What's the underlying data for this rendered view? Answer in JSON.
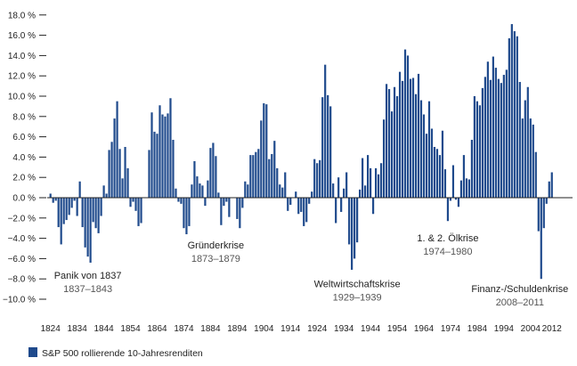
{
  "chart_data": {
    "type": "bar",
    "title": "",
    "xlabel": "",
    "ylabel": "",
    "ylim": [
      -10,
      18
    ],
    "grid": false,
    "bar_color": "#1f4a8c",
    "y_ticks": [
      18,
      16,
      14,
      12,
      10,
      8,
      6,
      4,
      2,
      0,
      -2,
      -4,
      -6,
      -8,
      -10
    ],
    "y_tick_labels": [
      "18.0 %",
      "16.0 %",
      "14.0 %",
      "12.0 %",
      "10.0 %",
      "8.0 %",
      "6.0 %",
      "4.0 %",
      "2.0 %",
      "0.0 %",
      "−2.0 %",
      "−4.0 %",
      "−6.0 %",
      "−8.0 %",
      "−10.0 %"
    ],
    "x_tick_labels": [
      "1824",
      "1834",
      "1844",
      "1854",
      "1864",
      "1874",
      "1884",
      "1894",
      "1904",
      "1914",
      "1924",
      "1934",
      "1944",
      "1954",
      "1964",
      "1974",
      "1984",
      "1994",
      "2004",
      "2012"
    ],
    "legend": {
      "position": "bottom-left",
      "label": "S&P 500 rollierende 10-Jahresrenditen"
    },
    "annotations": [
      {
        "title": "Panik von 1837",
        "years": "1837–1843",
        "anchor_year": 1838,
        "anchor_value": -8.0
      },
      {
        "title": "Gründerkrise",
        "years": "1873–1879",
        "anchor_year": 1886,
        "anchor_value": -5.0
      },
      {
        "title": "Weltwirtschaftskrise",
        "years": "1929–1939",
        "anchor_year": 1939,
        "anchor_value": -8.8
      },
      {
        "title": "1. & 2. Ölkrise",
        "years": "1974–1980",
        "anchor_year": 1973,
        "anchor_value": -4.3
      },
      {
        "title": "Finanz-/Schuldenkrise",
        "years": "2008–2011",
        "anchor_year": 2000,
        "anchor_value": -9.3
      }
    ],
    "start_year": 1824,
    "values": [
      0.4,
      -0.5,
      -0.3,
      -2.9,
      -4.6,
      -2.6,
      -2.2,
      -1.7,
      -1.0,
      -0.3,
      -1.8,
      1.6,
      -2.9,
      -4.9,
      -5.8,
      -6.4,
      -2.4,
      -3.0,
      -3.5,
      -1.8,
      1.2,
      0.4,
      4.7,
      5.5,
      7.8,
      9.5,
      4.8,
      1.9,
      5.0,
      2.9,
      -0.9,
      -0.4,
      -1.3,
      -2.8,
      -2.5,
      0,
      0,
      4.7,
      8.4,
      6.5,
      6.3,
      9.1,
      8.2,
      8.0,
      8.3,
      9.8,
      5.7,
      0.9,
      -0.4,
      -0.6,
      -3.0,
      -3.6,
      -2.8,
      1.3,
      3.6,
      2.1,
      1.4,
      1.2,
      -0.8,
      1.7,
      4.9,
      5.4,
      4.1,
      0.5,
      -2.7,
      -0.8,
      -0.4,
      -1.9,
      0,
      0,
      -2.1,
      -3.0,
      -1.0,
      1.6,
      1.3,
      4.2,
      4.2,
      4.5,
      4.8,
      7.6,
      9.3,
      9.2,
      3.8,
      4.3,
      5.6,
      2.9,
      1.3,
      1.0,
      2.5,
      -1.3,
      -0.7,
      0,
      0.6,
      -1.6,
      -1.4,
      -2.8,
      -2.4,
      -0.6,
      0.6,
      3.8,
      3.4,
      3.7,
      9.9,
      13.1,
      10.1,
      9.0,
      1.4,
      -2.5,
      2.0,
      -1.4,
      0.9,
      2.5,
      -4.6,
      -7.1,
      -6.0,
      -4.4,
      0.8,
      3.9,
      1.2,
      4.2,
      2.9,
      -1.6,
      2.9,
      2.3,
      3.4,
      7.7,
      11.2,
      10.7,
      8.5,
      10.9,
      10.0,
      12.4,
      11.5,
      14.6,
      14.0,
      11.7,
      11.8,
      10.2,
      12.2,
      9.6,
      8.2,
      6.3,
      9.5,
      6.8,
      5.0,
      4.8,
      4.2,
      6.6,
      2.8,
      -2.3,
      -0.3,
      3.2,
      -0.2,
      -0.9,
      1.7,
      4.2,
      1.9,
      1.8,
      5.7,
      10.0,
      9.5,
      9.1,
      10.8,
      11.9,
      13.4,
      11.6,
      13.9,
      12.8,
      11.7,
      11.3,
      12.1,
      12.6,
      15.7,
      17.1,
      16.4,
      15.9,
      11.4,
      7.8,
      9.6,
      10.9,
      7.8,
      7.2,
      4.5,
      -3.3,
      -8.0,
      -3.0,
      -0.6,
      1.6,
      2.5
    ]
  }
}
